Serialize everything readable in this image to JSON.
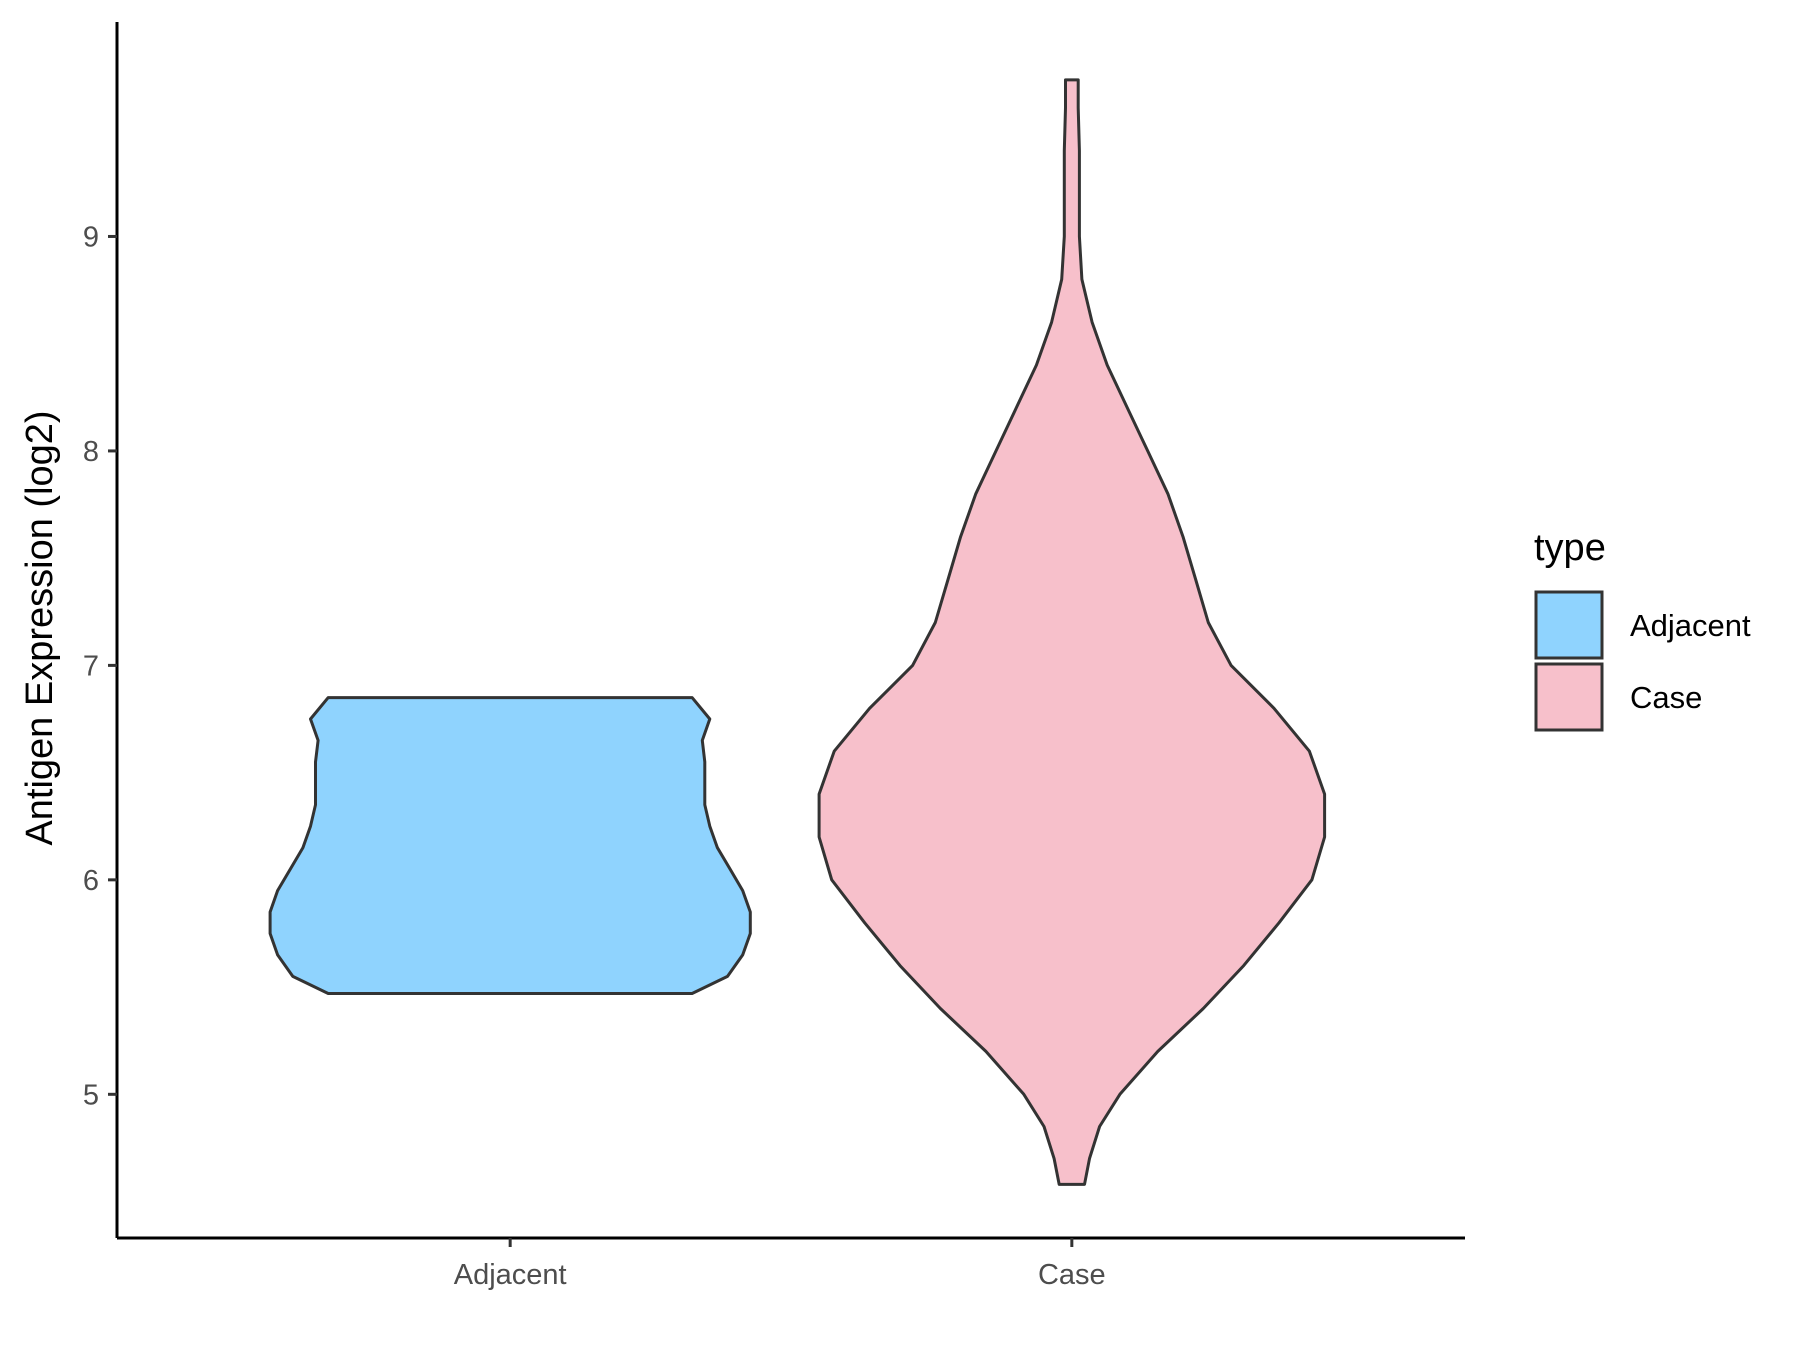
{
  "chart_data": {
    "type": "violin",
    "xlabel": "",
    "ylabel": "Antigen Expression (log2)",
    "categories": [
      "Adjacent",
      "Case"
    ],
    "yticks": [
      5,
      6,
      7,
      8,
      9
    ],
    "ylim": [
      4.33,
      10.0
    ],
    "grid": false,
    "legend": {
      "title": "type",
      "position": "right",
      "entries": [
        {
          "label": "Adjacent",
          "color": "#8FD3FE"
        },
        {
          "label": "Case",
          "color": "#F7C0CB"
        }
      ]
    },
    "series": [
      {
        "name": "Adjacent",
        "color": "#8FD3FE",
        "range": [
          5.47,
          6.85
        ],
        "density": [
          [
            5.47,
            0.72
          ],
          [
            5.55,
            0.86
          ],
          [
            5.65,
            0.92
          ],
          [
            5.75,
            0.95
          ],
          [
            5.85,
            0.95
          ],
          [
            5.95,
            0.92
          ],
          [
            6.05,
            0.87
          ],
          [
            6.15,
            0.82
          ],
          [
            6.25,
            0.79
          ],
          [
            6.35,
            0.77
          ],
          [
            6.45,
            0.77
          ],
          [
            6.55,
            0.77
          ],
          [
            6.65,
            0.76
          ],
          [
            6.75,
            0.79
          ],
          [
            6.85,
            0.72
          ]
        ]
      },
      {
        "name": "Case",
        "color": "#F7C0CB",
        "range": [
          4.58,
          9.73
        ],
        "density": [
          [
            4.58,
            0.05
          ],
          [
            4.7,
            0.07
          ],
          [
            4.85,
            0.11
          ],
          [
            5.0,
            0.19
          ],
          [
            5.2,
            0.34
          ],
          [
            5.4,
            0.52
          ],
          [
            5.6,
            0.68
          ],
          [
            5.8,
            0.82
          ],
          [
            6.0,
            0.95
          ],
          [
            6.2,
            1.0
          ],
          [
            6.4,
            1.0
          ],
          [
            6.6,
            0.94
          ],
          [
            6.8,
            0.8
          ],
          [
            7.0,
            0.63
          ],
          [
            7.2,
            0.54
          ],
          [
            7.4,
            0.49
          ],
          [
            7.6,
            0.44
          ],
          [
            7.8,
            0.38
          ],
          [
            8.0,
            0.3
          ],
          [
            8.2,
            0.22
          ],
          [
            8.4,
            0.14
          ],
          [
            8.6,
            0.08
          ],
          [
            8.8,
            0.04
          ],
          [
            9.0,
            0.03
          ],
          [
            9.2,
            0.03
          ],
          [
            9.4,
            0.03
          ],
          [
            9.6,
            0.025
          ],
          [
            9.73,
            0.025
          ]
        ]
      }
    ]
  }
}
